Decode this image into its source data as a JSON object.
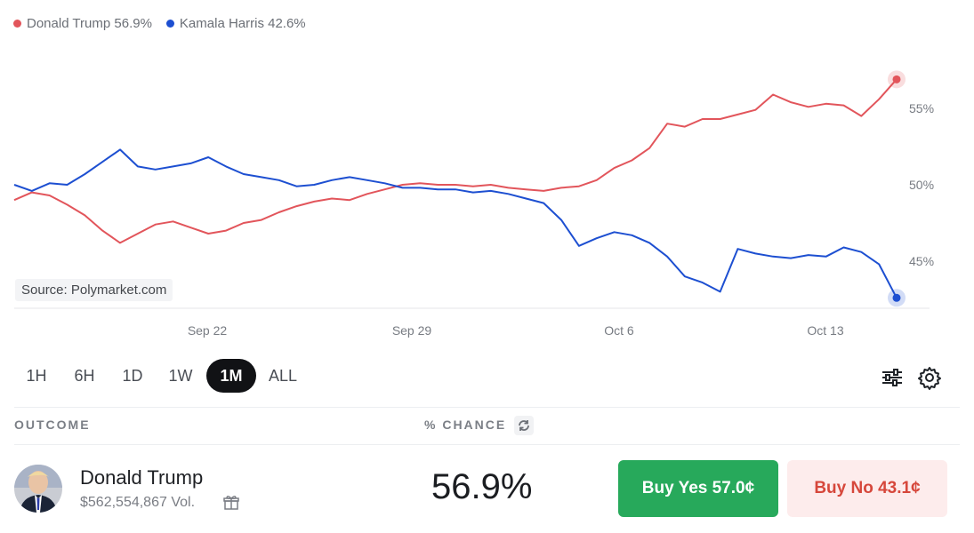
{
  "legend": [
    {
      "label": "Donald Trump 56.9%",
      "color": "#e2555b"
    },
    {
      "label": "Kamala Harris 42.6%",
      "color": "#1d4fd1"
    }
  ],
  "source_label": "Source: Polymarket.com",
  "chart_data": {
    "type": "line",
    "x_tick_labels": [
      "Sep 22",
      "Sep 29",
      "Oct 6",
      "Oct 13"
    ],
    "y_tick_labels": [
      "55%",
      "50%",
      "45%"
    ],
    "ylim": [
      42,
      59
    ],
    "series": [
      {
        "name": "Donald Trump",
        "color": "#e2555b",
        "values": [
          49.0,
          49.5,
          49.3,
          48.7,
          48.0,
          47.0,
          46.2,
          46.8,
          47.4,
          47.6,
          47.2,
          46.8,
          47.0,
          47.5,
          47.7,
          48.2,
          48.6,
          48.9,
          49.1,
          49.0,
          49.4,
          49.7,
          50.0,
          50.1,
          50.0,
          50.0,
          49.9,
          50.0,
          49.8,
          49.7,
          49.6,
          49.8,
          49.9,
          50.3,
          51.1,
          51.6,
          52.4,
          54.0,
          53.8,
          54.3,
          54.3,
          54.6,
          54.9,
          55.9,
          55.4,
          55.1,
          55.3,
          55.2,
          54.5,
          55.6,
          56.9
        ]
      },
      {
        "name": "Kamala Harris",
        "color": "#1d4fd1",
        "values": [
          50.0,
          49.6,
          50.1,
          50.0,
          50.7,
          51.5,
          52.3,
          51.2,
          51.0,
          51.2,
          51.4,
          51.8,
          51.2,
          50.7,
          50.5,
          50.3,
          49.9,
          50.0,
          50.3,
          50.5,
          50.3,
          50.1,
          49.8,
          49.8,
          49.7,
          49.7,
          49.5,
          49.6,
          49.4,
          49.1,
          48.8,
          47.7,
          46.0,
          46.5,
          46.9,
          46.7,
          46.2,
          45.3,
          44.0,
          43.6,
          43.0,
          45.8,
          45.5,
          45.3,
          45.2,
          45.4,
          45.3,
          45.9,
          45.6,
          44.8,
          42.6
        ]
      }
    ]
  },
  "ranges": [
    "1H",
    "6H",
    "1D",
    "1W",
    "1M",
    "ALL"
  ],
  "active_range": "1M",
  "table": {
    "outcome_header": "OUTCOME",
    "chance_header": "% CHANCE"
  },
  "outcome": {
    "name": "Donald Trump",
    "volume": "$562,554,867 Vol.",
    "chance": "56.9%",
    "buy_yes": "Buy Yes 57.0¢",
    "buy_no": "Buy No 43.1¢"
  }
}
